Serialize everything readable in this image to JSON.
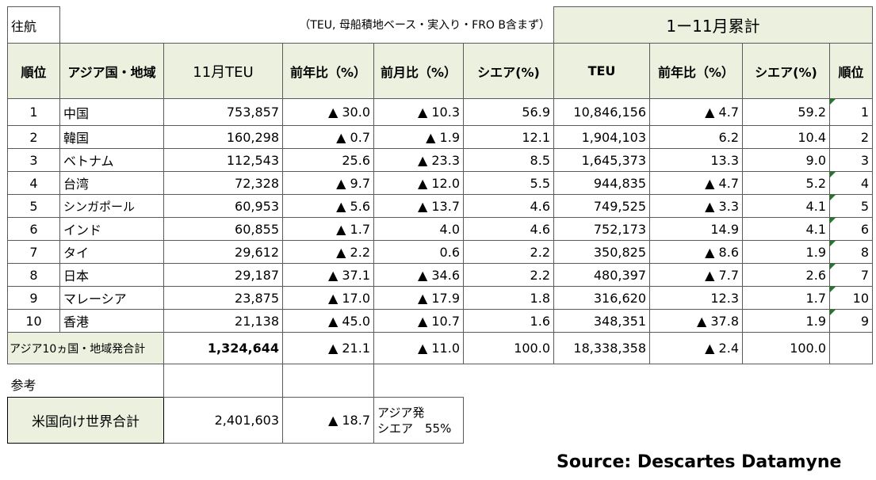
{
  "corner_label": "往航",
  "note": "（TEU, 母船積地ベース・実入り・FRO B含まず）",
  "cumulative_title": "1ー11月累計",
  "headers": {
    "rank": "順位",
    "region": "アジア国・地域",
    "month_teu": "11月TEU",
    "yoy": "前年比（%）",
    "mom": "前月比（%）",
    "share": "シエア(%)",
    "cum_teu": "TEU",
    "cum_yoy": "前年比（%）",
    "cum_share": "シエア(%)",
    "cum_rank": "順位"
  },
  "rows": [
    {
      "rank": "1",
      "region": "中国",
      "teu": "753,857",
      "yoy": "▲ 30.0",
      "mom": "▲ 10.3",
      "share": "56.9",
      "cum_teu": "10,846,156",
      "cum_yoy": "▲ 4.7",
      "cum_share": "59.2",
      "cum_rank": "1"
    },
    {
      "rank": "2",
      "region": "韓国",
      "teu": "160,298",
      "yoy": "▲ 0.7",
      "mom": "▲ 1.9",
      "share": "12.1",
      "cum_teu": "1,904,103",
      "cum_yoy": "6.2",
      "cum_share": "10.4",
      "cum_rank": "2"
    },
    {
      "rank": "3",
      "region": "ベトナム",
      "teu": "112,543",
      "yoy": "25.6",
      "mom": "▲ 23.3",
      "share": "8.5",
      "cum_teu": "1,645,373",
      "cum_yoy": "13.3",
      "cum_share": "9.0",
      "cum_rank": "3"
    },
    {
      "rank": "4",
      "region": "台湾",
      "teu": "72,328",
      "yoy": "▲ 9.7",
      "mom": "▲ 12.0",
      "share": "5.5",
      "cum_teu": "944,835",
      "cum_yoy": "▲ 4.7",
      "cum_share": "5.2",
      "cum_rank": "4"
    },
    {
      "rank": "5",
      "region": "シンガポール",
      "teu": "60,953",
      "yoy": "▲ 5.6",
      "mom": "▲ 13.7",
      "share": "4.6",
      "cum_teu": "749,525",
      "cum_yoy": "▲ 3.3",
      "cum_share": "4.1",
      "cum_rank": "5"
    },
    {
      "rank": "6",
      "region": "インド",
      "teu": "60,855",
      "yoy": "▲ 1.7",
      "mom": "4.0",
      "share": "4.6",
      "cum_teu": "752,173",
      "cum_yoy": "14.9",
      "cum_share": "4.1",
      "cum_rank": "6"
    },
    {
      "rank": "7",
      "region": "タイ",
      "teu": "29,612",
      "yoy": "▲ 2.2",
      "mom": "0.6",
      "share": "2.2",
      "cum_teu": "350,825",
      "cum_yoy": "▲ 8.6",
      "cum_share": "1.9",
      "cum_rank": "8"
    },
    {
      "rank": "8",
      "region": "日本",
      "teu": "29,187",
      "yoy": "▲ 37.1",
      "mom": "▲ 34.6",
      "share": "2.2",
      "cum_teu": "480,397",
      "cum_yoy": "▲ 7.7",
      "cum_share": "2.6",
      "cum_rank": "7"
    },
    {
      "rank": "9",
      "region": "マレーシア",
      "teu": "23,875",
      "yoy": "▲ 17.0",
      "mom": "▲ 17.9",
      "share": "1.8",
      "cum_teu": "316,620",
      "cum_yoy": "12.3",
      "cum_share": "1.7",
      "cum_rank": "10"
    },
    {
      "rank": "10",
      "region": "香港",
      "teu": "21,138",
      "yoy": "▲ 45.0",
      "mom": "▲ 10.7",
      "share": "1.6",
      "cum_teu": "348,351",
      "cum_yoy": "▲ 37.8",
      "cum_share": "1.9",
      "cum_rank": "9"
    }
  ],
  "total": {
    "label": "アジア10ヵ国・地域発合計",
    "teu": "1,324,644",
    "yoy": "▲ 21.1",
    "mom": "▲ 11.0",
    "share": "100.0",
    "cum_teu": "18,338,358",
    "cum_yoy": "▲ 2.4",
    "cum_share": "100.0"
  },
  "reference": {
    "label": "参考",
    "world_label": "米国向け世界合計",
    "world_teu": "2,401,603",
    "world_yoy": "▲ 18.7",
    "asia_share_line1": "アジア発",
    "asia_share_line2": "シエア　55%"
  },
  "source": "Source: Descartes Datamyne",
  "colors": {
    "header_fill": "#ebf1de",
    "flag": "#1f7a2a"
  }
}
